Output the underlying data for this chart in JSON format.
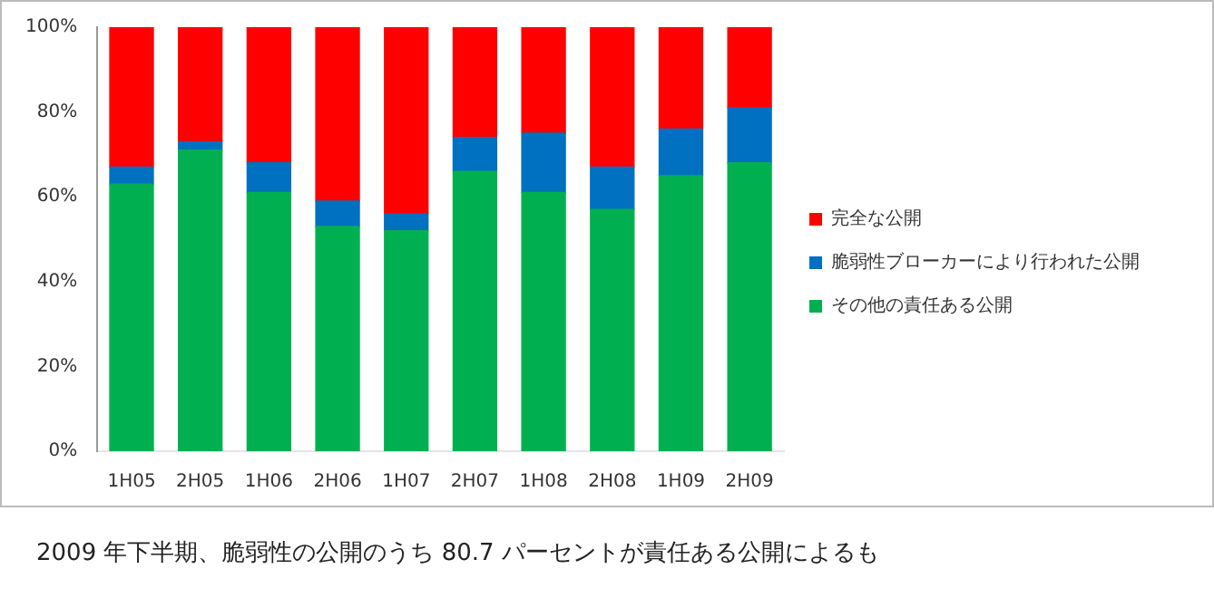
{
  "chart_data": {
    "type": "bar",
    "stacked": true,
    "categories": [
      "1H05",
      "2H05",
      "1H06",
      "2H06",
      "1H07",
      "2H07",
      "1H08",
      "2H08",
      "1H09",
      "2H09"
    ],
    "series": [
      {
        "name": "その他の責任ある公開",
        "color": "#00b050",
        "values": [
          63,
          71,
          61,
          53,
          52,
          66,
          61,
          57,
          65,
          68
        ]
      },
      {
        "name": "脆弱性ブローカーにより行われた公開",
        "color": "#0070c0",
        "values": [
          4,
          2,
          7,
          6,
          4,
          8,
          14,
          10,
          11,
          13
        ]
      },
      {
        "name": "完全な公開",
        "color": "#ff0000",
        "values": [
          33,
          27,
          32,
          41,
          44,
          26,
          25,
          33,
          24,
          19
        ]
      }
    ],
    "ylim": [
      0,
      100
    ],
    "yticks": [
      {
        "value": 0,
        "label": "0%"
      },
      {
        "value": 20,
        "label": "20%"
      },
      {
        "value": 40,
        "label": "40%"
      },
      {
        "value": 60,
        "label": "60%"
      },
      {
        "value": 80,
        "label": "80%"
      },
      {
        "value": 100,
        "label": "100%"
      }
    ],
    "grid": false,
    "legend": "right",
    "annotations": [
      "2009 年下半期、脆弱性の公開のうち 80.7 パーセントが責任ある公開によるも"
    ]
  }
}
